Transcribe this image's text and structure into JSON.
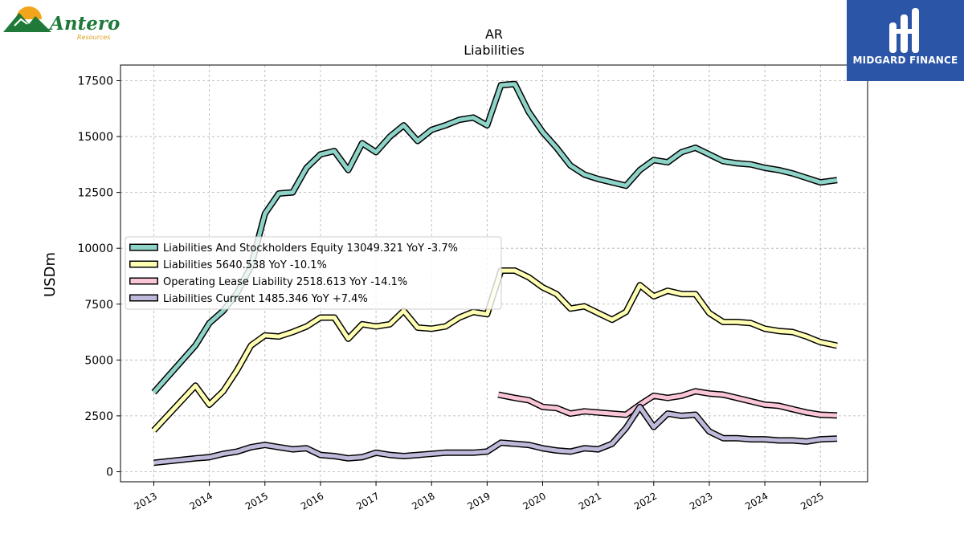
{
  "logos": {
    "left": {
      "name": "Antero",
      "subtitle": "Resources"
    },
    "right": {
      "name": "MIDGARD FINANCE"
    }
  },
  "chart_data": {
    "type": "line",
    "title": "AR",
    "subtitle": "Liabilities",
    "xlabel": "",
    "ylabel": "USDm",
    "xlim": [
      2012.4,
      2025.85
    ],
    "ylim": [
      -450,
      18200
    ],
    "yticks": [
      0,
      2500,
      5000,
      7500,
      10000,
      12500,
      15000,
      17500
    ],
    "xticks": [
      2013,
      2014,
      2015,
      2016,
      2017,
      2018,
      2019,
      2020,
      2021,
      2022,
      2023,
      2024,
      2025
    ],
    "grid": true,
    "legend_position": "center-left",
    "series": [
      {
        "name": "Liabilities And Stockholders Equity",
        "legend_label": "Liabilities And Stockholders Equity  13049.321 YoY -3.7%",
        "color": "#8dd3c7",
        "points": [
          [
            2013.0,
            3550
          ],
          [
            2013.75,
            5650
          ],
          [
            2014.0,
            6650
          ],
          [
            2014.25,
            7200
          ],
          [
            2014.5,
            8000
          ],
          [
            2014.75,
            9200
          ],
          [
            2015.0,
            11550
          ],
          [
            2015.25,
            12450
          ],
          [
            2015.5,
            12500
          ],
          [
            2015.75,
            13600
          ],
          [
            2016.0,
            14200
          ],
          [
            2016.25,
            14350
          ],
          [
            2016.5,
            13500
          ],
          [
            2016.75,
            14700
          ],
          [
            2017.0,
            14300
          ],
          [
            2017.25,
            15000
          ],
          [
            2017.5,
            15500
          ],
          [
            2017.75,
            14800
          ],
          [
            2018.0,
            15300
          ],
          [
            2018.25,
            15500
          ],
          [
            2018.5,
            15750
          ],
          [
            2018.75,
            15850
          ],
          [
            2019.0,
            15500
          ],
          [
            2019.25,
            17300
          ],
          [
            2019.5,
            17350
          ],
          [
            2019.75,
            16100
          ],
          [
            2020.0,
            15200
          ],
          [
            2020.25,
            14500
          ],
          [
            2020.5,
            13700
          ],
          [
            2020.75,
            13300
          ],
          [
            2021.0,
            13100
          ],
          [
            2021.25,
            12950
          ],
          [
            2021.5,
            12800
          ],
          [
            2021.75,
            13500
          ],
          [
            2022.0,
            13950
          ],
          [
            2022.25,
            13850
          ],
          [
            2022.5,
            14300
          ],
          [
            2022.75,
            14500
          ],
          [
            2023.0,
            14200
          ],
          [
            2023.25,
            13900
          ],
          [
            2023.5,
            13800
          ],
          [
            2023.75,
            13750
          ],
          [
            2024.0,
            13600
          ],
          [
            2024.25,
            13500
          ],
          [
            2024.5,
            13350
          ],
          [
            2024.75,
            13150
          ],
          [
            2025.0,
            12950
          ],
          [
            2025.3,
            13049
          ]
        ]
      },
      {
        "name": "Liabilities",
        "legend_label": "Liabilities  5640.538 YoY -10.1%",
        "color": "#ffffb3",
        "points": [
          [
            2013.0,
            1850
          ],
          [
            2013.75,
            3850
          ],
          [
            2014.0,
            3000
          ],
          [
            2014.25,
            3600
          ],
          [
            2014.5,
            4550
          ],
          [
            2014.75,
            5650
          ],
          [
            2015.0,
            6100
          ],
          [
            2015.25,
            6050
          ],
          [
            2015.5,
            6250
          ],
          [
            2015.75,
            6500
          ],
          [
            2016.0,
            6900
          ],
          [
            2016.25,
            6900
          ],
          [
            2016.5,
            5950
          ],
          [
            2016.75,
            6600
          ],
          [
            2017.0,
            6500
          ],
          [
            2017.25,
            6600
          ],
          [
            2017.5,
            7200
          ],
          [
            2017.75,
            6450
          ],
          [
            2018.0,
            6400
          ],
          [
            2018.25,
            6500
          ],
          [
            2018.5,
            6900
          ],
          [
            2018.75,
            7150
          ],
          [
            2019.0,
            7050
          ],
          [
            2019.25,
            9000
          ],
          [
            2019.5,
            9000
          ],
          [
            2019.75,
            8700
          ],
          [
            2020.0,
            8250
          ],
          [
            2020.25,
            7950
          ],
          [
            2020.5,
            7300
          ],
          [
            2020.75,
            7400
          ],
          [
            2021.0,
            7100
          ],
          [
            2021.25,
            6800
          ],
          [
            2021.5,
            7150
          ],
          [
            2021.75,
            8350
          ],
          [
            2022.0,
            7850
          ],
          [
            2022.25,
            8100
          ],
          [
            2022.5,
            7950
          ],
          [
            2022.75,
            7950
          ],
          [
            2023.0,
            7100
          ],
          [
            2023.25,
            6700
          ],
          [
            2023.5,
            6700
          ],
          [
            2023.75,
            6650
          ],
          [
            2024.0,
            6400
          ],
          [
            2024.25,
            6300
          ],
          [
            2024.5,
            6250
          ],
          [
            2024.75,
            6050
          ],
          [
            2025.0,
            5800
          ],
          [
            2025.3,
            5640
          ]
        ]
      },
      {
        "name": "Operating Lease Liability",
        "legend_label": "Operating Lease Liability  2518.613 YoY -14.1%",
        "color": "#fbc5d9",
        "points": [
          [
            2019.2,
            3450
          ],
          [
            2019.5,
            3300
          ],
          [
            2019.75,
            3200
          ],
          [
            2020.0,
            2900
          ],
          [
            2020.25,
            2850
          ],
          [
            2020.5,
            2600
          ],
          [
            2020.75,
            2700
          ],
          [
            2021.0,
            2650
          ],
          [
            2021.25,
            2600
          ],
          [
            2021.5,
            2550
          ],
          [
            2021.75,
            3000
          ],
          [
            2022.0,
            3400
          ],
          [
            2022.25,
            3300
          ],
          [
            2022.5,
            3400
          ],
          [
            2022.75,
            3600
          ],
          [
            2023.0,
            3500
          ],
          [
            2023.25,
            3450
          ],
          [
            2023.5,
            3300
          ],
          [
            2023.75,
            3150
          ],
          [
            2024.0,
            3000
          ],
          [
            2024.25,
            2950
          ],
          [
            2024.5,
            2800
          ],
          [
            2024.75,
            2650
          ],
          [
            2025.0,
            2550
          ],
          [
            2025.3,
            2519
          ]
        ]
      },
      {
        "name": "Liabilities Current",
        "legend_label": "Liabilities Current  1485.346 YoY +7.4%",
        "color": "#bebada",
        "points": [
          [
            2013.0,
            400
          ],
          [
            2013.75,
            600
          ],
          [
            2014.0,
            650
          ],
          [
            2014.25,
            800
          ],
          [
            2014.5,
            900
          ],
          [
            2014.75,
            1100
          ],
          [
            2015.0,
            1200
          ],
          [
            2015.25,
            1100
          ],
          [
            2015.5,
            1000
          ],
          [
            2015.75,
            1050
          ],
          [
            2016.0,
            750
          ],
          [
            2016.25,
            700
          ],
          [
            2016.5,
            600
          ],
          [
            2016.75,
            650
          ],
          [
            2017.0,
            850
          ],
          [
            2017.25,
            750
          ],
          [
            2017.5,
            700
          ],
          [
            2017.75,
            750
          ],
          [
            2018.0,
            800
          ],
          [
            2018.25,
            850
          ],
          [
            2018.5,
            850
          ],
          [
            2018.75,
            850
          ],
          [
            2019.0,
            900
          ],
          [
            2019.25,
            1300
          ],
          [
            2019.5,
            1250
          ],
          [
            2019.75,
            1200
          ],
          [
            2020.0,
            1050
          ],
          [
            2020.25,
            950
          ],
          [
            2020.5,
            900
          ],
          [
            2020.75,
            1050
          ],
          [
            2021.0,
            1000
          ],
          [
            2021.25,
            1250
          ],
          [
            2021.5,
            1950
          ],
          [
            2021.75,
            2900
          ],
          [
            2022.0,
            2000
          ],
          [
            2022.25,
            2600
          ],
          [
            2022.5,
            2500
          ],
          [
            2022.75,
            2550
          ],
          [
            2023.0,
            1800
          ],
          [
            2023.25,
            1500
          ],
          [
            2023.5,
            1500
          ],
          [
            2023.75,
            1450
          ],
          [
            2024.0,
            1450
          ],
          [
            2024.25,
            1400
          ],
          [
            2024.5,
            1400
          ],
          [
            2024.75,
            1350
          ],
          [
            2025.0,
            1450
          ],
          [
            2025.3,
            1485
          ]
        ]
      }
    ]
  }
}
